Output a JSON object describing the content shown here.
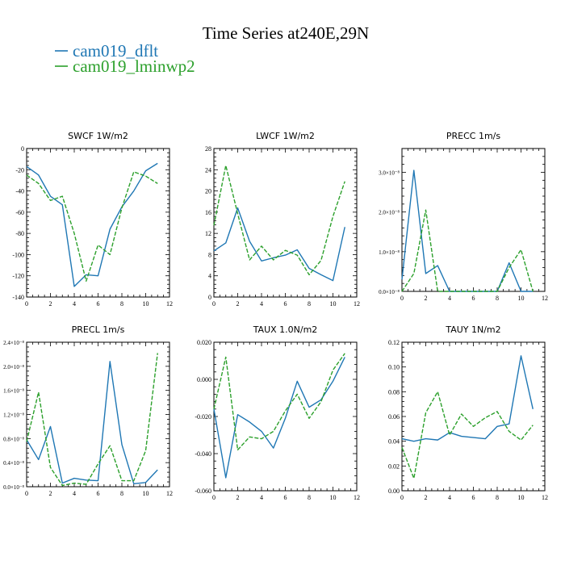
{
  "figure": {
    "title": "Time Series at240E,29N",
    "legend": [
      {
        "label": "cam019_dflt",
        "color": "#1f77b4"
      },
      {
        "label": "cam019_lminwp2",
        "color": "#2ca02c"
      }
    ]
  },
  "chart_data": [
    {
      "type": "line",
      "title": "SWCF   1W/m2",
      "xlim": [
        0,
        12
      ],
      "xticks": [
        0,
        2,
        4,
        6,
        8,
        10,
        12
      ],
      "ylim": [
        -140,
        0
      ],
      "yticks": [
        -140,
        -120,
        -100,
        -80,
        -60,
        -40,
        -20,
        0
      ],
      "ytick_labels": [
        "-140",
        "-120",
        "-100",
        "-80",
        "-60",
        "-40",
        "-20",
        "0"
      ],
      "x": [
        0,
        1,
        2,
        3,
        4,
        5,
        6,
        7,
        8,
        9,
        10,
        11
      ],
      "series": [
        {
          "name": "cam019_dflt",
          "values": [
            -17,
            -25,
            -45,
            -53,
            -130,
            -119,
            -120,
            -76,
            -55,
            -40,
            -21,
            -14
          ]
        },
        {
          "name": "cam019_lminwp2",
          "values": [
            -25,
            -33,
            -49,
            -45,
            -80,
            -125,
            -91,
            -100,
            -56,
            -22,
            -26,
            -33
          ]
        }
      ]
    },
    {
      "type": "line",
      "title": "LWCF   1W/m2",
      "xlim": [
        0,
        12
      ],
      "xticks": [
        0,
        2,
        4,
        6,
        8,
        10,
        12
      ],
      "ylim": [
        0,
        28
      ],
      "yticks": [
        0,
        4,
        8,
        12,
        16,
        20,
        24,
        28
      ],
      "ytick_labels": [
        "0",
        "4",
        "8",
        "12",
        "16",
        "20",
        "24",
        "28"
      ],
      "x": [
        0,
        1,
        2,
        3,
        4,
        5,
        6,
        7,
        8,
        9,
        10,
        11
      ],
      "series": [
        {
          "name": "cam019_dflt",
          "values": [
            8.7,
            10.2,
            16.8,
            10.5,
            6.8,
            7.4,
            7.9,
            8.9,
            5.4,
            4.2,
            3.1,
            13.2
          ]
        },
        {
          "name": "cam019_lminwp2",
          "values": [
            13.5,
            24.8,
            15.7,
            7.0,
            9.6,
            7.0,
            8.8,
            7.9,
            4.2,
            6.9,
            15.2,
            21.8
          ]
        }
      ]
    },
    {
      "type": "line",
      "title": "PRECC   1m/s",
      "xlim": [
        0,
        12
      ],
      "xticks": [
        0,
        2,
        4,
        6,
        8,
        10,
        12
      ],
      "ylim": [
        0,
        3.6e-08
      ],
      "yticks": [
        0,
        1e-08,
        2e-08,
        3e-08
      ],
      "ytick_labels": [
        "0.0×10⁻⁸",
        "1.0×10⁻⁸",
        "2.0×10⁻⁸",
        "3.0×10⁻⁸"
      ],
      "x": [
        0,
        1,
        2,
        3,
        4,
        5,
        6,
        7,
        8,
        9,
        10,
        11
      ],
      "series": [
        {
          "name": "cam019_dflt",
          "values": [
            3e-09,
            3.05e-08,
            4.5e-09,
            6.5e-09,
            0,
            0,
            0,
            0,
            0,
            7.2e-09,
            0,
            0
          ]
        },
        {
          "name": "cam019_lminwp2",
          "values": [
            0,
            4.5e-09,
            2.05e-08,
            0,
            0,
            0,
            0,
            0,
            0,
            6e-09,
            1.05e-08,
            0
          ]
        }
      ]
    },
    {
      "type": "line",
      "title": "PRECL   1m/s",
      "xlim": [
        0,
        12
      ],
      "xticks": [
        0,
        2,
        4,
        6,
        8,
        10,
        12
      ],
      "ylim": [
        0,
        2.4e-08
      ],
      "yticks": [
        0,
        4e-09,
        8e-09,
        1.2e-08,
        1.6e-08,
        2e-08,
        2.4e-08
      ],
      "ytick_labels": [
        "0.0×10⁻⁸",
        "0.4×10⁻⁸",
        "0.8×10⁻⁸",
        "1.2×10⁻⁸",
        "1.6×10⁻⁸",
        "2.0×10⁻⁸",
        "2.4×10⁻⁸"
      ],
      "x": [
        0,
        1,
        2,
        3,
        4,
        5,
        6,
        7,
        8,
        9,
        10,
        11
      ],
      "series": [
        {
          "name": "cam019_dflt",
          "values": [
            7.8e-09,
            4.5e-09,
            1e-08,
            6e-10,
            1.4e-09,
            1.1e-09,
            1e-09,
            2.08e-08,
            7e-09,
            5e-10,
            7e-10,
            2.8e-09
          ]
        },
        {
          "name": "cam019_lminwp2",
          "values": [
            7.5e-09,
            1.57e-08,
            3.2e-09,
            2e-10,
            6e-10,
            4e-10,
            3.8e-09,
            6.8e-09,
            1e-09,
            1e-09,
            6e-09,
            2.22e-08
          ]
        }
      ]
    },
    {
      "type": "line",
      "title": "TAUX   1.0N/m2",
      "xlim": [
        0,
        12
      ],
      "xticks": [
        0,
        2,
        4,
        6,
        8,
        10,
        12
      ],
      "ylim": [
        -0.06,
        0.02
      ],
      "yticks": [
        -0.06,
        -0.04,
        -0.02,
        0,
        0.02
      ],
      "ytick_labels": [
        "-0.060",
        "-0.040",
        "-0.020",
        "0.000",
        "0.020"
      ],
      "x": [
        0,
        1,
        2,
        3,
        4,
        5,
        6,
        7,
        8,
        9,
        10,
        11
      ],
      "series": [
        {
          "name": "cam019_dflt",
          "values": [
            -0.016,
            -0.053,
            -0.019,
            -0.023,
            -0.028,
            -0.037,
            -0.021,
            -0.001,
            -0.015,
            -0.011,
            -0.001,
            0.012
          ]
        },
        {
          "name": "cam019_lminwp2",
          "values": [
            -0.016,
            0.012,
            -0.038,
            -0.031,
            -0.032,
            -0.028,
            -0.017,
            -0.008,
            -0.021,
            -0.012,
            0.005,
            0.014
          ]
        }
      ]
    },
    {
      "type": "line",
      "title": "TAUY   1N/m2",
      "xlim": [
        0,
        12
      ],
      "xticks": [
        0,
        2,
        4,
        6,
        8,
        10,
        12
      ],
      "ylim": [
        0,
        0.12
      ],
      "yticks": [
        0,
        0.02,
        0.04,
        0.06,
        0.08,
        0.1,
        0.12
      ],
      "ytick_labels": [
        "0.00",
        "0.02",
        "0.04",
        "0.06",
        "0.08",
        "0.10",
        "0.12"
      ],
      "x": [
        0,
        1,
        2,
        3,
        4,
        5,
        6,
        7,
        8,
        9,
        10,
        11
      ],
      "series": [
        {
          "name": "cam019_dflt",
          "values": [
            0.042,
            0.04,
            0.042,
            0.041,
            0.047,
            0.044,
            0.043,
            0.042,
            0.052,
            0.054,
            0.109,
            0.066
          ]
        },
        {
          "name": "cam019_lminwp2",
          "values": [
            0.035,
            0.01,
            0.063,
            0.08,
            0.045,
            0.062,
            0.052,
            0.059,
            0.064,
            0.048,
            0.041,
            0.053
          ]
        }
      ]
    }
  ]
}
